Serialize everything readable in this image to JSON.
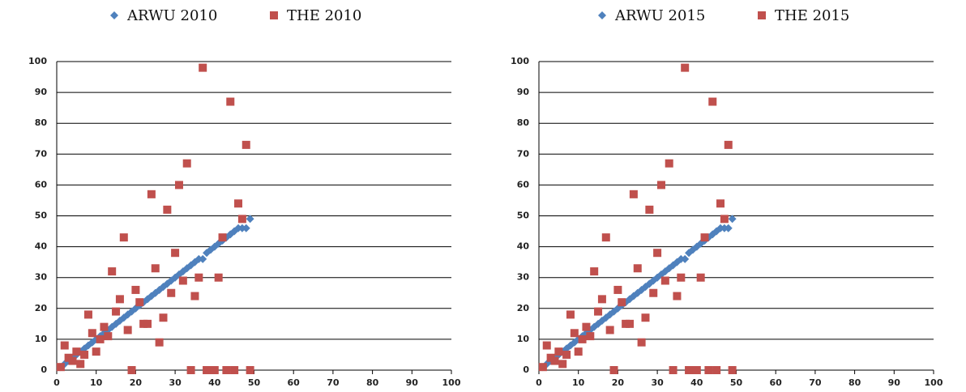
{
  "chart_data": [
    {
      "type": "scatter",
      "x": [
        1,
        2,
        3,
        4,
        5,
        6,
        7,
        8,
        9,
        10,
        11,
        12,
        13,
        14,
        15,
        16,
        17,
        18,
        19,
        20,
        21,
        22,
        23,
        24,
        25,
        26,
        27,
        28,
        29,
        30,
        31,
        32,
        33,
        34,
        35,
        36,
        37,
        38,
        39,
        40,
        41,
        42,
        43,
        44,
        45,
        46,
        47,
        48,
        49
      ],
      "series": [
        {
          "name": "ARWU 2010",
          "color": "#4f81bd",
          "marker": "diamond",
          "values": [
            1,
            2,
            3,
            4,
            5,
            6,
            7,
            8,
            9,
            10,
            11,
            12,
            13,
            14,
            15,
            16,
            17,
            18,
            19,
            20,
            21,
            22,
            23,
            24,
            25,
            26,
            27,
            28,
            29,
            30,
            31,
            32,
            33,
            34,
            35,
            36,
            36,
            38,
            39,
            40,
            41,
            42,
            43,
            44,
            45,
            46,
            46,
            46,
            49
          ]
        },
        {
          "name": "THE 2010",
          "color": "#c0504d",
          "marker": "square",
          "values": [
            1,
            8,
            4,
            3,
            6,
            2,
            5,
            18,
            12,
            6,
            10,
            14,
            11,
            32,
            19,
            23,
            43,
            13,
            0,
            26,
            22,
            15,
            15,
            57,
            33,
            9,
            17,
            52,
            25,
            38,
            60,
            29,
            67,
            0,
            24,
            30,
            98,
            0,
            0,
            0,
            30,
            43,
            0,
            87,
            0,
            54,
            49,
            73,
            0
          ]
        }
      ],
      "xlim": [
        0,
        100
      ],
      "xticks": [
        0,
        10,
        20,
        30,
        40,
        50,
        60,
        70,
        80,
        90,
        100
      ],
      "ylim": [
        0,
        100
      ],
      "yticks": [
        0,
        10,
        20,
        30,
        40,
        50,
        60,
        70,
        80,
        90,
        100
      ],
      "grid": true,
      "legend": "top"
    },
    {
      "type": "scatter",
      "x": [
        1,
        2,
        3,
        4,
        5,
        6,
        7,
        8,
        9,
        10,
        11,
        12,
        13,
        14,
        15,
        16,
        17,
        18,
        19,
        20,
        21,
        22,
        23,
        24,
        25,
        26,
        27,
        28,
        29,
        30,
        31,
        32,
        33,
        34,
        35,
        36,
        37,
        38,
        39,
        40,
        41,
        42,
        43,
        44,
        45,
        46,
        47,
        48,
        49
      ],
      "series": [
        {
          "name": "ARWU 2015",
          "color": "#4f81bd",
          "marker": "diamond",
          "values": [
            1,
            2,
            3,
            4,
            5,
            6,
            7,
            8,
            9,
            10,
            11,
            12,
            13,
            14,
            15,
            16,
            17,
            18,
            19,
            20,
            21,
            22,
            23,
            24,
            25,
            26,
            27,
            28,
            29,
            30,
            31,
            32,
            33,
            34,
            35,
            36,
            36,
            38,
            39,
            40,
            41,
            42,
            43,
            44,
            45,
            46,
            46,
            46,
            49
          ]
        },
        {
          "name": "THE 2015",
          "color": "#c0504d",
          "marker": "square",
          "values": [
            1,
            8,
            4,
            3,
            6,
            2,
            5,
            18,
            12,
            6,
            10,
            14,
            11,
            32,
            19,
            23,
            43,
            13,
            0,
            26,
            22,
            15,
            15,
            57,
            33,
            9,
            17,
            52,
            25,
            38,
            60,
            29,
            67,
            0,
            24,
            30,
            98,
            0,
            0,
            0,
            30,
            43,
            0,
            87,
            0,
            54,
            49,
            73,
            0
          ]
        }
      ],
      "xlim": [
        0,
        100
      ],
      "xticks": [
        0,
        10,
        20,
        30,
        40,
        50,
        60,
        70,
        80,
        90,
        100
      ],
      "ylim": [
        0,
        100
      ],
      "yticks": [
        0,
        10,
        20,
        30,
        40,
        50,
        60,
        70,
        80,
        90,
        100
      ],
      "grid": true,
      "legend": "top"
    }
  ]
}
